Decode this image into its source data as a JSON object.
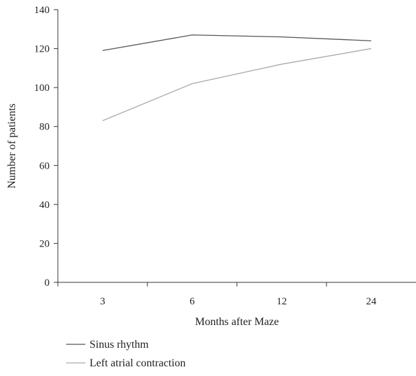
{
  "chart_data": {
    "type": "line",
    "categories": [
      "3",
      "6",
      "12",
      "24"
    ],
    "series": [
      {
        "name": "Sinus rhythm",
        "values": [
          119,
          127,
          126,
          124
        ],
        "color": "#555555"
      },
      {
        "name": "Left atrial contraction",
        "values": [
          83,
          102,
          112,
          120
        ],
        "color": "#aaaaaa"
      }
    ],
    "xlabel": "Months after Maze",
    "ylabel": "Number of patients",
    "ylim": [
      0,
      140
    ],
    "yticks": [
      0,
      20,
      40,
      60,
      80,
      100,
      120,
      140
    ],
    "grid": false,
    "legend_position": "bottom-left"
  }
}
